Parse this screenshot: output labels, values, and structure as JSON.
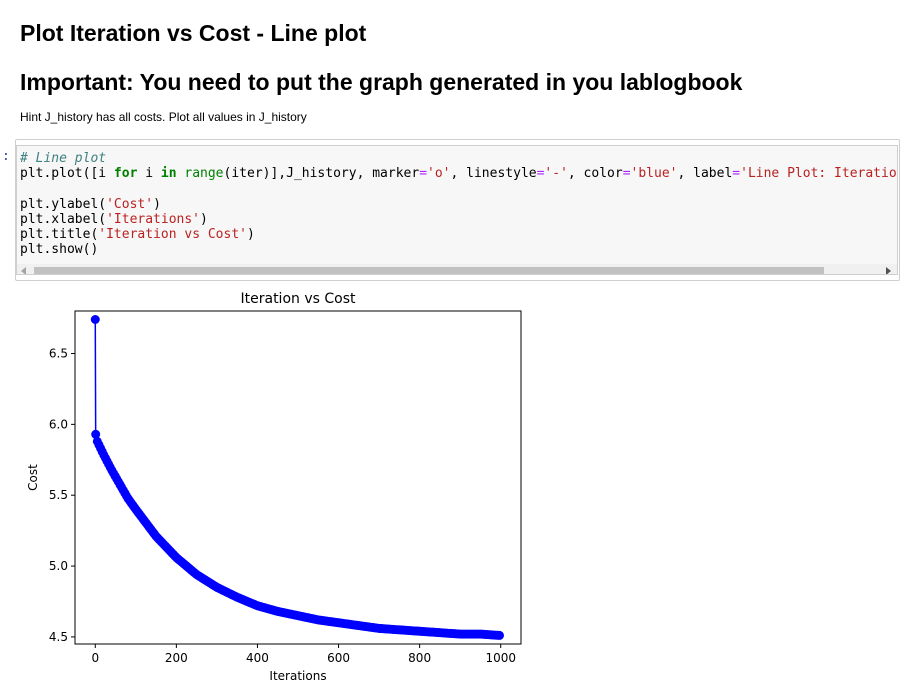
{
  "heading_1": "Plot Iteration vs Cost - Line plot",
  "heading_2": "Important: You need to put the graph generated in you lablogbook",
  "hint": "Hint J_history has all costs. Plot all values in J_history",
  "cell": {
    "prompt": ":",
    "code": {
      "comment": "# Line plot",
      "plot_call": "plt.plot([i for i in range(iter)],J_history, marker='o', linestyle='-', color='blue', label='Line Plot: Iterations v",
      "ylabel_call": "plt.ylabel('Cost')",
      "xlabel_call": "plt.xlabel('Iterations')",
      "title_call": "plt.title('Iteration vs Cost')",
      "show_call": "plt.show()"
    }
  },
  "colors": {
    "series": "#0000ff",
    "prompt": "#303F9F"
  },
  "chart_data": {
    "type": "line",
    "title": "Iteration vs Cost",
    "xlabel": "Iterations",
    "ylabel": "Cost",
    "xlim": [
      -50,
      1050
    ],
    "ylim": [
      4.45,
      6.8
    ],
    "xticks": [
      0,
      200,
      400,
      600,
      800,
      1000
    ],
    "xtick_labels": [
      "0",
      "200",
      "400",
      "600",
      "800",
      "1000"
    ],
    "yticks": [
      4.5,
      5.0,
      5.5,
      6.0,
      6.5
    ],
    "ytick_labels": [
      "4.5",
      "5.0",
      "5.5",
      "6.0",
      "6.5"
    ],
    "marker": "o",
    "linestyle": "-",
    "series": [
      {
        "color": "#0000ff",
        "x": [
          0,
          1,
          2,
          5,
          10,
          20,
          40,
          60,
          80,
          100,
          150,
          200,
          250,
          300,
          350,
          400,
          450,
          500,
          550,
          600,
          650,
          700,
          750,
          800,
          850,
          900,
          950,
          1000
        ],
        "y": [
          6.74,
          5.93,
          5.91,
          5.88,
          5.85,
          5.79,
          5.68,
          5.58,
          5.48,
          5.4,
          5.21,
          5.06,
          4.94,
          4.85,
          4.78,
          4.72,
          4.68,
          4.65,
          4.62,
          4.6,
          4.58,
          4.56,
          4.55,
          4.54,
          4.53,
          4.52,
          4.52,
          4.51
        ]
      }
    ]
  }
}
